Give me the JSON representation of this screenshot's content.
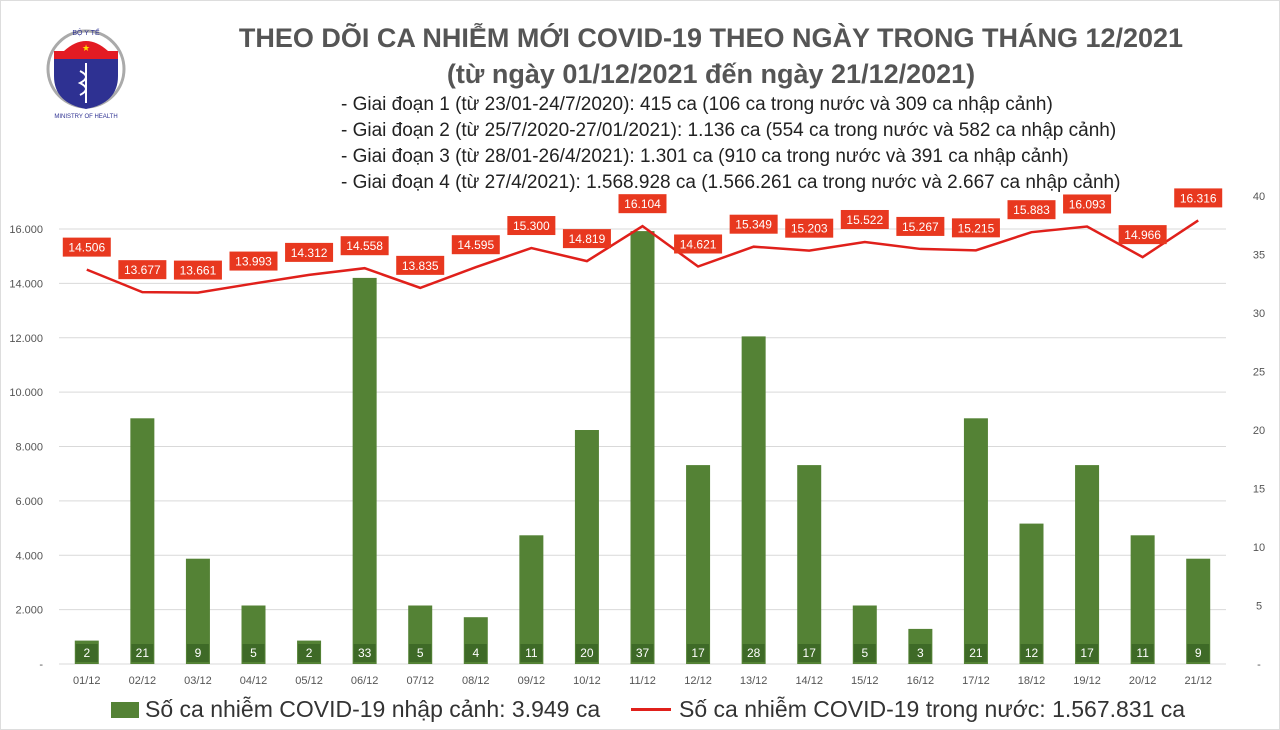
{
  "header": {
    "logo_text": "BỘ Y TẾ · MINISTRY OF HEALTH",
    "title": "THEO DÕI CA NHIỄM MỚI COVID-19 THEO NGÀY TRONG THÁNG 12/2021",
    "subtitle": "(từ ngày 01/12/2021 đến ngày 21/12/2021)",
    "notes": [
      "- Giai đoạn 1 (từ 23/01-24/7/2020): 415 ca (106 ca trong nước và 309 ca nhập cảnh)",
      "- Giai đoạn 2 (từ 25/7/2020-27/01/2021): 1.136 ca (554 ca trong nước và 582 ca nhập cảnh)",
      "- Giai đoạn 3 (từ 28/01-26/4/2021): 1.301 ca (910 ca trong nước và 391 ca nhập cảnh)",
      "- Giai đoạn 4 (từ 27/4/2021): 1.568.928 ca (1.566.261 ca trong nước và 2.667 ca nhập cảnh)"
    ]
  },
  "chart_data": {
    "type": "bar+line",
    "categories": [
      "01/12",
      "02/12",
      "03/12",
      "04/12",
      "05/12",
      "06/12",
      "07/12",
      "08/12",
      "09/12",
      "10/12",
      "11/12",
      "12/12",
      "13/12",
      "14/12",
      "15/12",
      "16/12",
      "17/12",
      "18/12",
      "19/12",
      "20/12",
      "21/12"
    ],
    "series": [
      {
        "name": "Số ca nhiễm COVID-19 nhập cảnh: 3.949 ca",
        "type": "bar",
        "axis": "right",
        "color": "#548235",
        "values": [
          2,
          21,
          9,
          5,
          2,
          33,
          5,
          4,
          11,
          20,
          37,
          17,
          28,
          17,
          5,
          3,
          21,
          12,
          17,
          11,
          9
        ]
      },
      {
        "name": "Số ca nhiễm COVID-19 trong nước: 1.567.831 ca",
        "type": "line",
        "axis": "left",
        "color": "#e0201b",
        "values": [
          14506,
          13677,
          13661,
          13993,
          14312,
          14558,
          13835,
          14595,
          15300,
          14819,
          16104,
          14621,
          15349,
          15203,
          15522,
          15267,
          15215,
          15883,
          16093,
          14966,
          16316
        ],
        "labels": [
          "14.506",
          "13.677",
          "13.661",
          "13.993",
          "14.312",
          "14.558",
          "13.835",
          "14.595",
          "15.300",
          "14.819",
          "16.104",
          "14.621",
          "15.349",
          "15.203",
          "15.522",
          "15.267",
          "15.215",
          "15.883",
          "16.093",
          "14.966",
          "16.316"
        ]
      }
    ],
    "left_axis": {
      "ticks": [
        "-",
        "2.000",
        "4.000",
        "6.000",
        "8.000",
        "10.000",
        "12.000",
        "14.000",
        "16.000"
      ],
      "ylim": [
        0,
        16000
      ]
    },
    "right_axis": {
      "ticks": [
        "-",
        "5",
        "10",
        "15",
        "20",
        "25",
        "30",
        "35",
        "40"
      ],
      "ylim": [
        0,
        40
      ]
    },
    "grid": true,
    "legend": "bottom"
  }
}
